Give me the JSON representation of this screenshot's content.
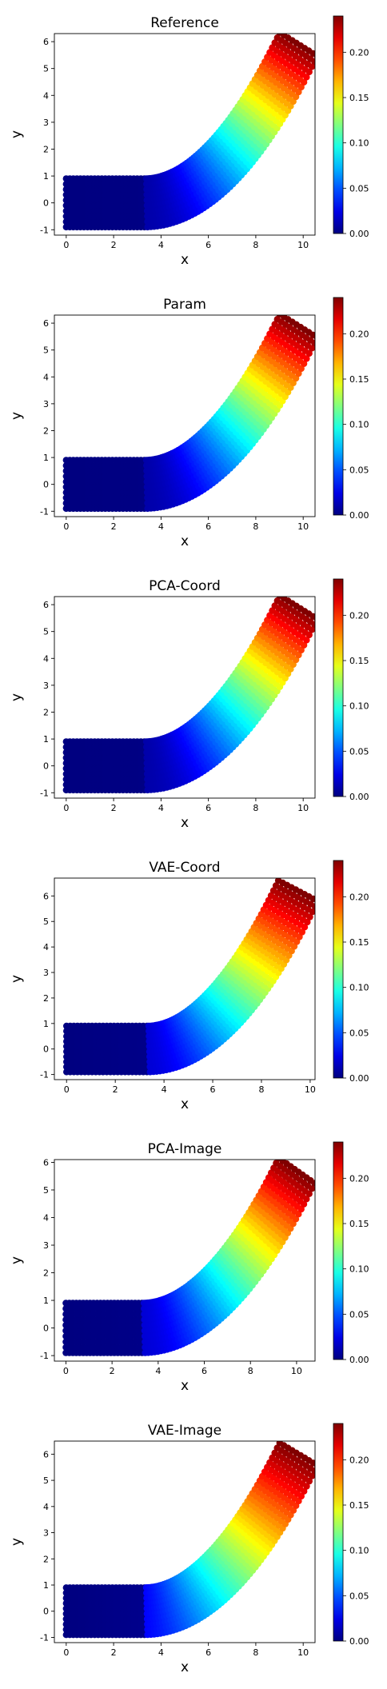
{
  "chart_data": [
    {
      "type": "scatter",
      "title": "Reference",
      "xlabel": "x",
      "ylabel": "y",
      "xlim": [
        -0.5,
        10.5
      ],
      "ylim": [
        -1.2,
        6.3
      ],
      "xticks": [
        "0",
        "2",
        "4",
        "6",
        "8",
        "10"
      ],
      "yticks": [
        "-1",
        "0",
        "1",
        "2",
        "3",
        "4",
        "5",
        "6"
      ],
      "colorbar": {
        "min": 0.0,
        "max": 0.24,
        "ticks": [
          "0.00",
          "0.05",
          "0.10",
          "0.15",
          "0.20"
        ]
      },
      "shape": {
        "straight_length": 3.3,
        "tip_x": 9.8,
        "tip_y": 5.9,
        "half_width": 0.9
      },
      "color_field": {
        "base_max": 0.01,
        "tip_value": 0.24,
        "exponent": 2.0
      },
      "grid": false,
      "legend": "none"
    },
    {
      "type": "scatter",
      "title": "Param",
      "xlabel": "x",
      "ylabel": "y",
      "xlim": [
        -0.5,
        10.5
      ],
      "ylim": [
        -1.2,
        6.3
      ],
      "xticks": [
        "0",
        "2",
        "4",
        "6",
        "8",
        "10"
      ],
      "yticks": [
        "-1",
        "0",
        "1",
        "2",
        "3",
        "4",
        "5",
        "6"
      ],
      "colorbar": {
        "min": 0.0,
        "max": 0.24,
        "ticks": [
          "0.00",
          "0.05",
          "0.10",
          "0.15",
          "0.20"
        ]
      },
      "shape": {
        "straight_length": 3.3,
        "tip_x": 9.8,
        "tip_y": 5.9,
        "half_width": 0.9
      },
      "color_field": {
        "base_max": 0.01,
        "tip_value": 0.24,
        "exponent": 2.0
      },
      "grid": false,
      "legend": "none"
    },
    {
      "type": "scatter",
      "title": "PCA-Coord",
      "xlabel": "x",
      "ylabel": "y",
      "xlim": [
        -0.5,
        10.5
      ],
      "ylim": [
        -1.2,
        6.3
      ],
      "xticks": [
        "0",
        "2",
        "4",
        "6",
        "8",
        "10"
      ],
      "yticks": [
        "-1",
        "0",
        "1",
        "2",
        "3",
        "4",
        "5",
        "6"
      ],
      "colorbar": {
        "min": 0.0,
        "max": 0.24,
        "ticks": [
          "0.00",
          "0.05",
          "0.10",
          "0.15",
          "0.20"
        ]
      },
      "shape": {
        "straight_length": 3.3,
        "tip_x": 9.8,
        "tip_y": 5.9,
        "half_width": 0.9
      },
      "color_field": {
        "base_max": 0.01,
        "tip_value": 0.24,
        "exponent": 2.0
      },
      "grid": false,
      "legend": "none"
    },
    {
      "type": "scatter",
      "title": "VAE-Coord",
      "xlabel": "x",
      "ylabel": "y",
      "xlim": [
        -0.5,
        10.2
      ],
      "ylim": [
        -1.2,
        6.7
      ],
      "xticks": [
        "0",
        "2",
        "4",
        "6",
        "8",
        "10"
      ],
      "yticks": [
        "-1",
        "0",
        "1",
        "2",
        "3",
        "4",
        "5",
        "6"
      ],
      "colorbar": {
        "min": 0.0,
        "max": 0.24,
        "ticks": [
          "0.00",
          "0.05",
          "0.10",
          "0.15",
          "0.20"
        ]
      },
      "shape": {
        "straight_length": 3.3,
        "tip_x": 9.5,
        "tip_y": 6.2,
        "half_width": 0.9
      },
      "color_field": {
        "base_max": 0.02,
        "tip_value": 0.24,
        "exponent": 1.7
      },
      "grid": false,
      "legend": "none"
    },
    {
      "type": "scatter",
      "title": "PCA-Image",
      "xlabel": "x",
      "ylabel": "y",
      "xlim": [
        -0.5,
        10.8
      ],
      "ylim": [
        -1.2,
        6.1
      ],
      "xticks": [
        "0",
        "2",
        "4",
        "6",
        "8",
        "10"
      ],
      "yticks": [
        "-1",
        "0",
        "1",
        "2",
        "3",
        "4",
        "5",
        "6"
      ],
      "colorbar": {
        "min": 0.0,
        "max": 0.24,
        "ticks": [
          "0.00",
          "0.05",
          "0.10",
          "0.15",
          "0.20"
        ]
      },
      "shape": {
        "straight_length": 3.3,
        "tip_x": 10.0,
        "tip_y": 5.7,
        "half_width": 0.9
      },
      "color_field": {
        "base_max": 0.02,
        "tip_value": 0.24,
        "exponent": 1.8
      },
      "grid": false,
      "legend": "none"
    },
    {
      "type": "scatter",
      "title": "VAE-Image",
      "xlabel": "x",
      "ylabel": "y",
      "xlim": [
        -0.5,
        10.5
      ],
      "ylim": [
        -1.2,
        6.5
      ],
      "xticks": [
        "0",
        "2",
        "4",
        "6",
        "8",
        "10"
      ],
      "yticks": [
        "-1",
        "0",
        "1",
        "2",
        "3",
        "4",
        "5",
        "6"
      ],
      "colorbar": {
        "min": 0.0,
        "max": 0.24,
        "ticks": [
          "0.00",
          "0.05",
          "0.10",
          "0.15",
          "0.20"
        ]
      },
      "shape": {
        "straight_length": 3.3,
        "tip_x": 9.8,
        "tip_y": 6.0,
        "half_width": 0.9
      },
      "color_field": {
        "base_max": 0.03,
        "tip_value": 0.24,
        "exponent": 1.5
      },
      "grid": false,
      "legend": "none"
    }
  ]
}
